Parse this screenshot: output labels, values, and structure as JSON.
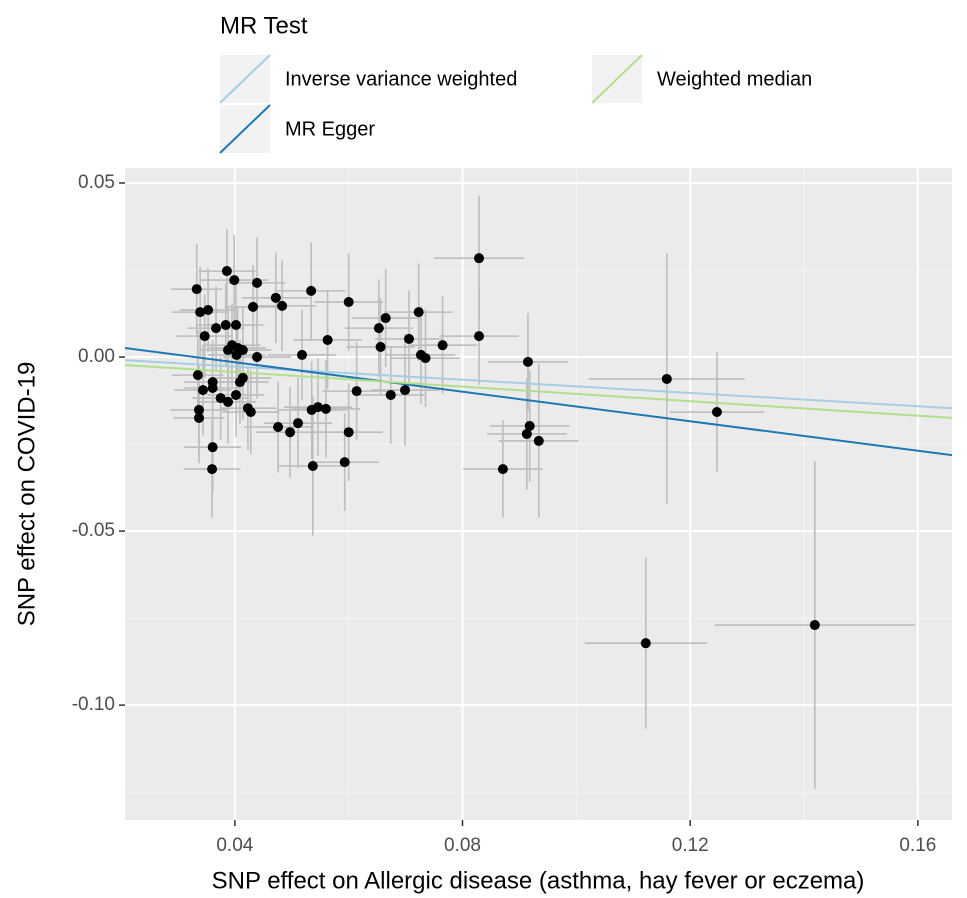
{
  "chart_data": {
    "type": "scatter",
    "xlabel": "SNP effect on Allergic disease (asthma, hay fever or eczema)",
    "ylabel": "SNP effect on COVID-19",
    "legend_title": "MR Test",
    "xlim": [
      0.0207,
      0.166
    ],
    "ylim": [
      -0.133,
      0.0543
    ],
    "xticks": [
      0.04,
      0.08,
      0.12,
      0.16
    ],
    "yticks": [
      0.05,
      {
        "value": 0,
        "label": "0.00"
      },
      -0.05,
      {
        "value": -0.1,
        "label": "-0.10"
      }
    ],
    "grid": true,
    "legend": "top",
    "points": {
      "color": "#000000",
      "errorbar_color": "#bdbdbd",
      "x": [
        0.0333,
        0.0339,
        0.0353,
        0.0347,
        0.0335,
        0.0344,
        0.0337,
        0.0337,
        0.0361,
        0.0361,
        0.0361,
        0.036,
        0.0367,
        0.0386,
        0.0399,
        0.0384,
        0.0402,
        0.0388,
        0.0395,
        0.0405,
        0.0414,
        0.0403,
        0.0375,
        0.0388,
        0.0402,
        0.0409,
        0.0414,
        0.0423,
        0.0428,
        0.0439,
        0.0432,
        0.0439,
        0.0472,
        0.0483,
        0.0476,
        0.0497,
        0.0511,
        0.0518,
        0.0534,
        0.0535,
        0.0546,
        0.056,
        0.0537,
        0.0563,
        0.06,
        0.06,
        0.0593,
        0.0614,
        0.0653,
        0.0656,
        0.0665,
        0.0674,
        0.0699,
        0.0706,
        0.0723,
        0.0727,
        0.0735,
        0.0765,
        0.0829,
        0.0829,
        0.0871,
        0.0915,
        0.0918,
        0.0913,
        0.0934,
        0.1159,
        0.1247,
        0.1122,
        0.1419
      ],
      "values": [
        0.0195,
        0.0129,
        0.0135,
        0.006,
        -0.0052,
        -0.0095,
        -0.0152,
        -0.0175,
        -0.0072,
        -0.0089,
        -0.0259,
        -0.0322,
        0.0083,
        0.0247,
        0.0221,
        0.0092,
        0.0092,
        0.002,
        0.0034,
        0.0026,
        0.002,
        0.0006,
        -0.0118,
        -0.0129,
        -0.0109,
        -0.0072,
        -0.006,
        -0.0147,
        -0.0158,
        0.0213,
        0.0144,
        0.0,
        0.017,
        0.0147,
        -0.0201,
        -0.0216,
        -0.019,
        0.0006,
        0.019,
        -0.0152,
        -0.0144,
        -0.0149,
        -0.0313,
        0.0049,
        0.0158,
        -0.0216,
        -0.0302,
        -0.0098,
        0.0083,
        0.0029,
        0.0112,
        -0.0109,
        -0.0095,
        0.0052,
        0.0129,
        0.0006,
        -0.0003,
        0.0034,
        0.0284,
        0.006,
        -0.0322,
        -0.0014,
        -0.0198,
        -0.0221,
        -0.0241,
        -0.0063,
        -0.0158,
        -0.0822,
        -0.077
      ],
      "xerr": [
        0.0045,
        0.005,
        0.005,
        0.005,
        0.0045,
        0.005,
        0.005,
        0.0045,
        0.005,
        0.005,
        0.005,
        0.005,
        0.005,
        0.005,
        0.006,
        0.005,
        0.005,
        0.005,
        0.005,
        0.005,
        0.005,
        0.005,
        0.005,
        0.005,
        0.005,
        0.005,
        0.005,
        0.005,
        0.005,
        0.005,
        0.005,
        0.006,
        0.006,
        0.006,
        0.006,
        0.006,
        0.006,
        0.006,
        0.006,
        0.006,
        0.006,
        0.006,
        0.006,
        0.006,
        0.006,
        0.006,
        0.006,
        0.006,
        0.006,
        0.006,
        0.006,
        0.006,
        0.006,
        0.006,
        0.006,
        0.006,
        0.006,
        0.006,
        0.0079,
        0.007,
        0.007,
        0.007,
        0.007,
        0.007,
        0.007,
        0.0137,
        0.0083,
        0.0107,
        0.0176
      ],
      "yerr": [
        0.013,
        0.013,
        0.012,
        0.012,
        0.013,
        0.013,
        0.013,
        0.013,
        0.012,
        0.012,
        0.013,
        0.014,
        0.012,
        0.012,
        0.013,
        0.012,
        0.012,
        0.012,
        0.012,
        0.012,
        0.012,
        0.012,
        0.012,
        0.012,
        0.012,
        0.012,
        0.012,
        0.012,
        0.012,
        0.013,
        0.012,
        0.012,
        0.013,
        0.013,
        0.013,
        0.013,
        0.013,
        0.013,
        0.014,
        0.014,
        0.014,
        0.014,
        0.02,
        0.014,
        0.014,
        0.014,
        0.014,
        0.014,
        0.014,
        0.014,
        0.014,
        0.014,
        0.016,
        0.014,
        0.014,
        0.014,
        0.014,
        0.014,
        0.018,
        0.014,
        0.014,
        0.014,
        0.016,
        0.016,
        0.022,
        0.036,
        0.0172,
        0.0246,
        0.047
      ]
    },
    "series": [
      {
        "name": "Inverse variance weighted",
        "color": "#a6cee3",
        "x": [
          0.0207,
          0.166
        ],
        "values": [
          -0.0009,
          -0.0147
        ]
      },
      {
        "name": "MR Egger",
        "color": "#1f78b4",
        "x": [
          0.0207,
          0.166
        ],
        "values": [
          0.0026,
          -0.0282
        ]
      },
      {
        "name": "Weighted median",
        "color": "#b2df8a",
        "x": [
          0.0207,
          0.166
        ],
        "values": [
          -0.0023,
          -0.0175
        ]
      }
    ]
  }
}
